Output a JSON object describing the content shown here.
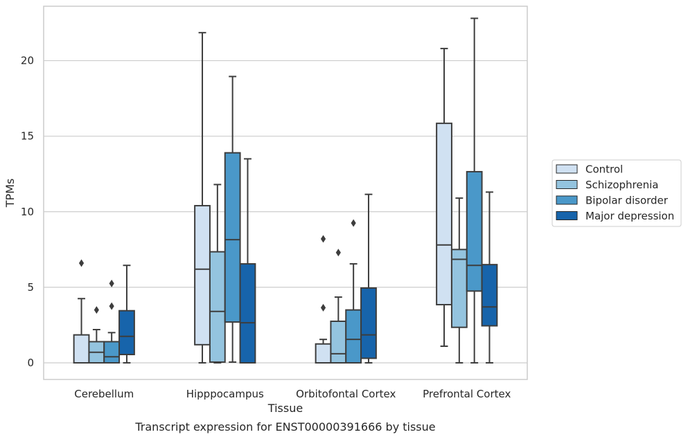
{
  "chart_data": {
    "type": "box",
    "xlabel": "Tissue",
    "ylabel": "TPMs",
    "caption": "Transcript expression for ENST00000391666 by tissue",
    "ylim": [
      -1.1,
      23.6
    ],
    "yticks": [
      0,
      5,
      10,
      15,
      20
    ],
    "grid": "horizontal",
    "legend_position": "right",
    "categories": [
      "Cerebellum",
      "Hipppocampus",
      "Orbitofontal Cortex",
      "Prefrontal Cortex"
    ],
    "series": [
      {
        "name": "Control",
        "color": "#d0e1f2",
        "boxes": [
          {
            "whislo": 0,
            "q1": 0,
            "med": 0,
            "q3": 1.85,
            "whishi": 4.25,
            "fliers": [
              6.6
            ]
          },
          {
            "whislo": 0,
            "q1": 1.2,
            "med": 6.2,
            "q3": 10.4,
            "whishi": 21.85,
            "fliers": []
          },
          {
            "whislo": 0,
            "q1": 0,
            "med": 0,
            "q3": 1.25,
            "whishi": 1.55,
            "fliers": [
              3.65,
              8.2
            ]
          },
          {
            "whislo": 1.1,
            "q1": 3.85,
            "med": 7.8,
            "q3": 15.85,
            "whishi": 20.8,
            "fliers": []
          }
        ]
      },
      {
        "name": "Schizophrenia",
        "color": "#94c4df",
        "boxes": [
          {
            "whislo": 0,
            "q1": 0,
            "med": 0.7,
            "q3": 1.4,
            "whishi": 2.2,
            "fliers": [
              3.5
            ]
          },
          {
            "whislo": 0,
            "q1": 0.05,
            "med": 3.4,
            "q3": 7.35,
            "whishi": 11.8,
            "fliers": []
          },
          {
            "whislo": 0,
            "q1": 0,
            "med": 0.6,
            "q3": 2.75,
            "whishi": 4.35,
            "fliers": [
              7.3
            ]
          },
          {
            "whislo": 0,
            "q1": 2.35,
            "med": 6.85,
            "q3": 7.5,
            "whishi": 10.9,
            "fliers": []
          }
        ]
      },
      {
        "name": "Bipolar disorder",
        "color": "#4a98c9",
        "boxes": [
          {
            "whislo": 0,
            "q1": 0,
            "med": 0.4,
            "q3": 1.4,
            "whishi": 2.0,
            "fliers": [
              3.75,
              5.25
            ]
          },
          {
            "whislo": 0.05,
            "q1": 2.7,
            "med": 8.15,
            "q3": 13.9,
            "whishi": 18.95,
            "fliers": []
          },
          {
            "whislo": 0,
            "q1": 0,
            "med": 1.55,
            "q3": 3.5,
            "whishi": 6.55,
            "fliers": [
              9.25
            ]
          },
          {
            "whislo": 0,
            "q1": 4.75,
            "med": 6.45,
            "q3": 12.65,
            "whishi": 22.8,
            "fliers": []
          }
        ]
      },
      {
        "name": "Major depression",
        "color": "#1764ab",
        "boxes": [
          {
            "whislo": 0,
            "q1": 0.55,
            "med": 1.75,
            "q3": 3.45,
            "whishi": 6.45,
            "fliers": []
          },
          {
            "whislo": 0,
            "q1": 0,
            "med": 2.65,
            "q3": 6.55,
            "whishi": 13.5,
            "fliers": []
          },
          {
            "whislo": 0,
            "q1": 0.3,
            "med": 1.85,
            "q3": 4.95,
            "whishi": 11.15,
            "fliers": []
          },
          {
            "whislo": 0,
            "q1": 2.45,
            "med": 3.7,
            "q3": 6.5,
            "whishi": 11.3,
            "fliers": []
          }
        ]
      }
    ]
  }
}
